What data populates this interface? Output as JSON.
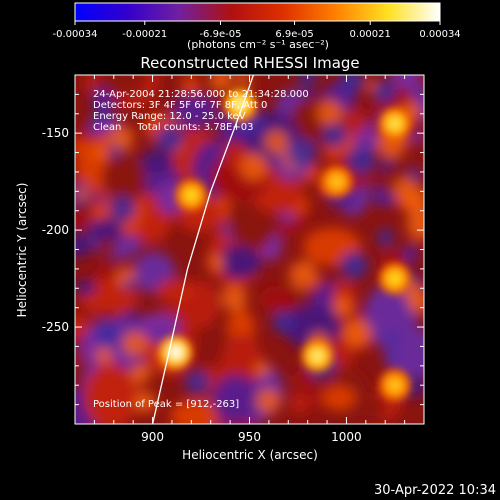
{
  "chart_data": {
    "type": "heatmap",
    "title": "Reconstructed RHESSI Image",
    "xlabel": "Heliocentric X (arcsec)",
    "ylabel": "Heliocentric Y (arcsec)",
    "xlim": [
      860,
      1040
    ],
    "ylim": [
      -300,
      -120
    ],
    "xticks": [
      "900",
      "950",
      "1000"
    ],
    "xtick_values": [
      900,
      950,
      1000
    ],
    "yticks": [
      "-150",
      "-200",
      "-250"
    ],
    "ytick_values": [
      -150,
      -200,
      -250
    ],
    "colorbar": {
      "ticks": [
        "-0.00034",
        "-0.00021",
        "-6.9e-05",
        "6.9e-05",
        "0.00021",
        "0.00034"
      ],
      "tick_values": [
        -0.00034,
        -0.00021,
        -6.9e-05,
        6.9e-05,
        0.00021,
        0.00034
      ],
      "range": [
        -0.00034,
        0.00034
      ],
      "unit_label": "(photons cm⁻² s⁻¹ asec⁻²)",
      "colors": [
        "#0000ff",
        "#3300cc",
        "#7020a0",
        "#b01010",
        "#e03000",
        "#ff8000",
        "#ffe020",
        "#ffffff"
      ]
    },
    "info_lines": [
      "24-Apr-2004 21:28:56.000 to 21:34:28.000",
      "Detectors: 3F 4F 5F 6F 7F 8F, Att 0",
      "Energy Range: 12.0 - 25.0 keV",
      "Clean     Total counts: 3.78E+03"
    ],
    "peak_text": "Position of Peak = [912,-263]",
    "peak": {
      "x": 912,
      "y": -263,
      "value": 0.00034
    },
    "bright_sources": [
      {
        "x": 912,
        "y": -263,
        "value": 0.00034
      },
      {
        "x": 945,
        "y": -135,
        "value": 0.0003
      },
      {
        "x": 985,
        "y": -265,
        "value": 0.00028
      },
      {
        "x": 1025,
        "y": -145,
        "value": 0.00026
      },
      {
        "x": 1025,
        "y": -225,
        "value": 0.00024
      },
      {
        "x": 920,
        "y": -182,
        "value": 0.00024
      },
      {
        "x": 995,
        "y": -175,
        "value": 0.00022
      },
      {
        "x": 1025,
        "y": -280,
        "value": 0.00022
      }
    ],
    "limb_curve": [
      [
        900,
        -300
      ],
      [
        908,
        -265
      ],
      [
        918,
        -220
      ],
      [
        930,
        -180
      ],
      [
        945,
        -140
      ],
      [
        952,
        -120
      ]
    ],
    "timestamp": "30-Apr-2022 10:34"
  }
}
